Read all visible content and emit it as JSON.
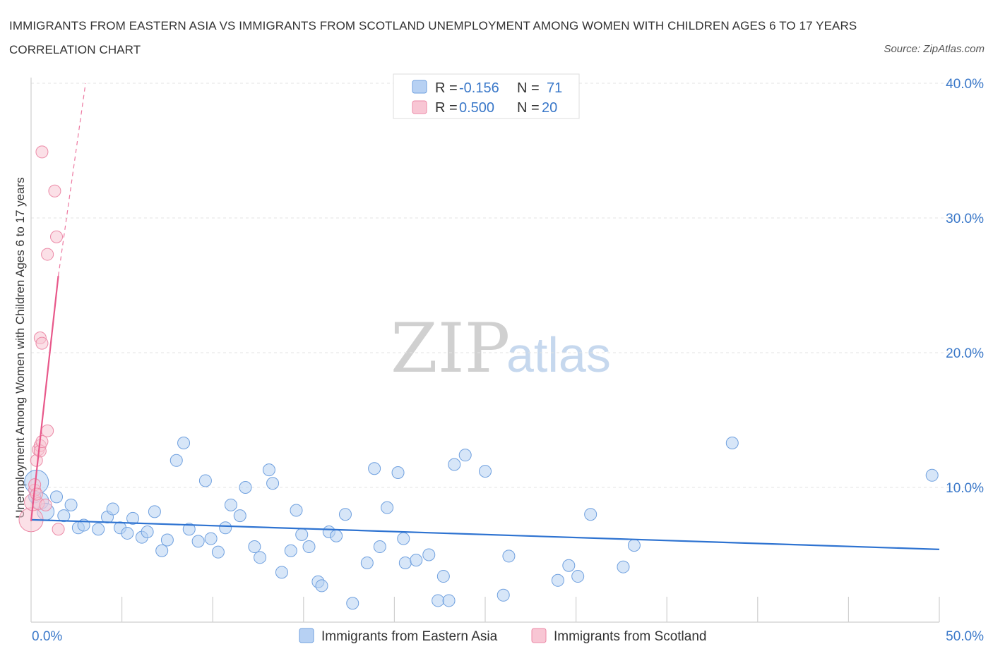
{
  "title": "IMMIGRANTS FROM EASTERN ASIA VS IMMIGRANTS FROM SCOTLAND UNEMPLOYMENT AMONG WOMEN WITH CHILDREN AGES 6 TO 17 YEARS CORRELATION CHART",
  "source": "Source: ZipAtlas.com",
  "watermark": {
    "zip": "ZIP",
    "atlas": "atlas"
  },
  "colors": {
    "eastern_asia_fill": "#b7d1f3",
    "eastern_asia_stroke": "#6fa0df",
    "eastern_asia_line": "#2e73d1",
    "scotland_fill": "#f8c6d4",
    "scotland_stroke": "#ec8aa7",
    "scotland_line": "#e8588a",
    "axis_label": "#3a78c9"
  },
  "legend": {
    "rows": [
      {
        "r_label": "R = ",
        "r_value": "-0.156",
        "n_label": "N = ",
        "n_value": "71"
      },
      {
        "r_label": "R = ",
        "r_value": "0.500",
        "n_label": "N = ",
        "n_value": "20"
      }
    ]
  },
  "bottom_legend": [
    "Immigrants from Eastern Asia",
    "Immigrants from Scotland"
  ],
  "chart_data": {
    "type": "scatter",
    "title": "IMMIGRANTS FROM EASTERN ASIA VS IMMIGRANTS FROM SCOTLAND UNEMPLOYMENT AMONG WOMEN WITH CHILDREN AGES 6 TO 17 YEARS CORRELATION CHART",
    "xlabel": "",
    "ylabel": "Unemployment Among Women with Children Ages 6 to 17 years",
    "xlim": [
      0,
      50
    ],
    "ylim": [
      0,
      40
    ],
    "x_tick_labels": [
      "0.0%",
      "50.0%"
    ],
    "y_tick_labels": [
      "10.0%",
      "20.0%",
      "30.0%",
      "40.0%"
    ],
    "y_ticks": [
      10,
      20,
      30,
      40
    ],
    "grid": true,
    "legend_position": "top-center",
    "series": [
      {
        "name": "Immigrants from Eastern Asia",
        "r": -0.156,
        "n": 71,
        "trend": {
          "x": [
            0,
            50
          ],
          "y": [
            7.6,
            5.4
          ]
        },
        "points": [
          {
            "x": 0.3,
            "y": 10.4,
            "s": 3
          },
          {
            "x": 0.5,
            "y": 9.0,
            "s": 2
          },
          {
            "x": 0.8,
            "y": 8.2,
            "s": 2
          },
          {
            "x": 1.4,
            "y": 9.3,
            "s": 1
          },
          {
            "x": 1.8,
            "y": 7.9,
            "s": 1
          },
          {
            "x": 2.2,
            "y": 8.7,
            "s": 1
          },
          {
            "x": 2.6,
            "y": 7.0,
            "s": 1
          },
          {
            "x": 2.9,
            "y": 7.2,
            "s": 1
          },
          {
            "x": 3.7,
            "y": 6.9,
            "s": 1
          },
          {
            "x": 4.2,
            "y": 7.8,
            "s": 1
          },
          {
            "x": 4.5,
            "y": 8.4,
            "s": 1
          },
          {
            "x": 4.9,
            "y": 7.0,
            "s": 1
          },
          {
            "x": 5.3,
            "y": 6.6,
            "s": 1
          },
          {
            "x": 5.6,
            "y": 7.7,
            "s": 1
          },
          {
            "x": 6.1,
            "y": 6.3,
            "s": 1
          },
          {
            "x": 6.4,
            "y": 6.7,
            "s": 1
          },
          {
            "x": 6.8,
            "y": 8.2,
            "s": 1
          },
          {
            "x": 7.2,
            "y": 5.3,
            "s": 1
          },
          {
            "x": 7.5,
            "y": 6.1,
            "s": 1
          },
          {
            "x": 8.0,
            "y": 12.0,
            "s": 1
          },
          {
            "x": 8.4,
            "y": 13.3,
            "s": 1
          },
          {
            "x": 8.7,
            "y": 6.9,
            "s": 1
          },
          {
            "x": 9.2,
            "y": 6.0,
            "s": 1
          },
          {
            "x": 9.6,
            "y": 10.5,
            "s": 1
          },
          {
            "x": 9.9,
            "y": 6.2,
            "s": 1
          },
          {
            "x": 10.3,
            "y": 5.2,
            "s": 1
          },
          {
            "x": 10.7,
            "y": 7.0,
            "s": 1
          },
          {
            "x": 11.0,
            "y": 8.7,
            "s": 1
          },
          {
            "x": 11.5,
            "y": 7.9,
            "s": 1
          },
          {
            "x": 11.8,
            "y": 10.0,
            "s": 1
          },
          {
            "x": 12.3,
            "y": 5.6,
            "s": 1
          },
          {
            "x": 12.6,
            "y": 4.8,
            "s": 1
          },
          {
            "x": 13.1,
            "y": 11.3,
            "s": 1
          },
          {
            "x": 13.3,
            "y": 10.3,
            "s": 1
          },
          {
            "x": 13.8,
            "y": 3.7,
            "s": 1
          },
          {
            "x": 14.3,
            "y": 5.3,
            "s": 1
          },
          {
            "x": 14.6,
            "y": 8.3,
            "s": 1
          },
          {
            "x": 14.9,
            "y": 6.5,
            "s": 1
          },
          {
            "x": 15.3,
            "y": 5.6,
            "s": 1
          },
          {
            "x": 15.8,
            "y": 3.0,
            "s": 1
          },
          {
            "x": 16.0,
            "y": 2.7,
            "s": 1
          },
          {
            "x": 16.4,
            "y": 6.7,
            "s": 1
          },
          {
            "x": 16.8,
            "y": 6.4,
            "s": 1
          },
          {
            "x": 17.3,
            "y": 8.0,
            "s": 1
          },
          {
            "x": 17.7,
            "y": 1.4,
            "s": 1
          },
          {
            "x": 18.5,
            "y": 4.4,
            "s": 1
          },
          {
            "x": 18.9,
            "y": 11.4,
            "s": 1
          },
          {
            "x": 19.2,
            "y": 5.6,
            "s": 1
          },
          {
            "x": 19.6,
            "y": 8.5,
            "s": 1
          },
          {
            "x": 20.2,
            "y": 11.1,
            "s": 1
          },
          {
            "x": 20.5,
            "y": 6.2,
            "s": 1
          },
          {
            "x": 20.6,
            "y": 4.4,
            "s": 1
          },
          {
            "x": 21.2,
            "y": 4.6,
            "s": 1
          },
          {
            "x": 21.9,
            "y": 5.0,
            "s": 1
          },
          {
            "x": 22.4,
            "y": 1.6,
            "s": 1
          },
          {
            "x": 22.7,
            "y": 3.4,
            "s": 1
          },
          {
            "x": 23.0,
            "y": 1.6,
            "s": 1
          },
          {
            "x": 23.3,
            "y": 11.7,
            "s": 1
          },
          {
            "x": 23.9,
            "y": 12.4,
            "s": 1
          },
          {
            "x": 25.0,
            "y": 11.2,
            "s": 1
          },
          {
            "x": 26.0,
            "y": 2.0,
            "s": 1
          },
          {
            "x": 26.3,
            "y": 4.9,
            "s": 1
          },
          {
            "x": 29.0,
            "y": 3.1,
            "s": 1
          },
          {
            "x": 29.6,
            "y": 4.2,
            "s": 1
          },
          {
            "x": 30.1,
            "y": 3.4,
            "s": 1
          },
          {
            "x": 30.8,
            "y": 8.0,
            "s": 1
          },
          {
            "x": 32.6,
            "y": 4.1,
            "s": 1
          },
          {
            "x": 33.2,
            "y": 5.7,
            "s": 1
          },
          {
            "x": 38.6,
            "y": 13.3,
            "s": 1
          },
          {
            "x": 49.6,
            "y": 10.9,
            "s": 1
          },
          {
            "x": 0.2,
            "y": 9.3,
            "s": 1
          }
        ]
      },
      {
        "name": "Immigrants from Scotland",
        "r": 0.5,
        "n": 20,
        "trend": {
          "x": [
            0.0,
            1.5
          ],
          "y": [
            7.5,
            25.7
          ]
        },
        "trend_extension": {
          "x": [
            1.5,
            3.0
          ],
          "y": [
            25.7,
            40.0
          ]
        },
        "points": [
          {
            "x": 0.0,
            "y": 7.6,
            "s": 3
          },
          {
            "x": 0.1,
            "y": 8.9,
            "s": 2
          },
          {
            "x": 0.2,
            "y": 9.8,
            "s": 1
          },
          {
            "x": 0.2,
            "y": 10.2,
            "s": 1
          },
          {
            "x": 0.3,
            "y": 12.0,
            "s": 1
          },
          {
            "x": 0.4,
            "y": 12.8,
            "s": 1
          },
          {
            "x": 0.5,
            "y": 13.1,
            "s": 1
          },
          {
            "x": 0.5,
            "y": 12.7,
            "s": 1
          },
          {
            "x": 0.6,
            "y": 13.4,
            "s": 1
          },
          {
            "x": 0.4,
            "y": 8.8,
            "s": 1
          },
          {
            "x": 0.6,
            "y": 34.9,
            "s": 1
          },
          {
            "x": 0.5,
            "y": 21.1,
            "s": 1
          },
          {
            "x": 0.6,
            "y": 20.7,
            "s": 1
          },
          {
            "x": 0.8,
            "y": 8.7,
            "s": 1
          },
          {
            "x": 0.9,
            "y": 27.3,
            "s": 1
          },
          {
            "x": 0.9,
            "y": 14.2,
            "s": 1
          },
          {
            "x": 1.3,
            "y": 32.0,
            "s": 1
          },
          {
            "x": 1.4,
            "y": 28.6,
            "s": 1
          },
          {
            "x": 1.5,
            "y": 6.9,
            "s": 1
          },
          {
            "x": 0.3,
            "y": 9.5,
            "s": 1
          }
        ]
      }
    ]
  }
}
